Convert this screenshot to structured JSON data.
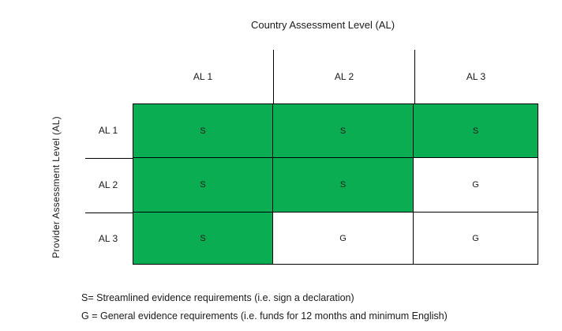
{
  "figure": {
    "column_axis_title": "Country Assessment Level (AL)",
    "row_axis_title": "Provider Assessment Level (AL)",
    "columns": [
      "AL 1",
      "AL 2",
      "AL 3"
    ],
    "rows": [
      {
        "label": "AL 1",
        "cells": [
          {
            "value": "S",
            "bg": "#0BAD52"
          },
          {
            "value": "S",
            "bg": "#0BAD52"
          },
          {
            "value": "S",
            "bg": "#0BAD52"
          }
        ]
      },
      {
        "label": "AL 2",
        "cells": [
          {
            "value": "S",
            "bg": "#0BAD52"
          },
          {
            "value": "S",
            "bg": "#0BAD52"
          },
          {
            "value": "G",
            "bg": "#FFFFFF"
          }
        ]
      },
      {
        "label": "AL 3",
        "cells": [
          {
            "value": "S",
            "bg": "#0BAD52"
          },
          {
            "value": "G",
            "bg": "#FFFFFF"
          },
          {
            "value": "G",
            "bg": "#FFFFFF"
          }
        ]
      }
    ],
    "legend_lines": [
      "S= Streamlined evidence requirements (i.e. sign a declaration)",
      "G = General evidence requirements (i.e. funds for 12 months and minimum English)"
    ],
    "colors": {
      "streamlined_bg": "#0BAD52",
      "general_bg": "#FFFFFF",
      "line": "#000000"
    }
  },
  "chart_data": {
    "type": "table",
    "title": "Country Assessment Level (AL)",
    "row_axis_label": "Provider Assessment Level (AL)",
    "columns": [
      "AL 1",
      "AL 2",
      "AL 3"
    ],
    "rows": [
      "AL 1",
      "AL 2",
      "AL 3"
    ],
    "values": [
      [
        "S",
        "S",
        "S"
      ],
      [
        "S",
        "S",
        "G"
      ],
      [
        "S",
        "G",
        "G"
      ]
    ],
    "legend": {
      "S": "Streamlined evidence requirements (i.e. sign a declaration)",
      "G": "General evidence requirements (i.e. funds for 12 months and minimum English)"
    }
  }
}
